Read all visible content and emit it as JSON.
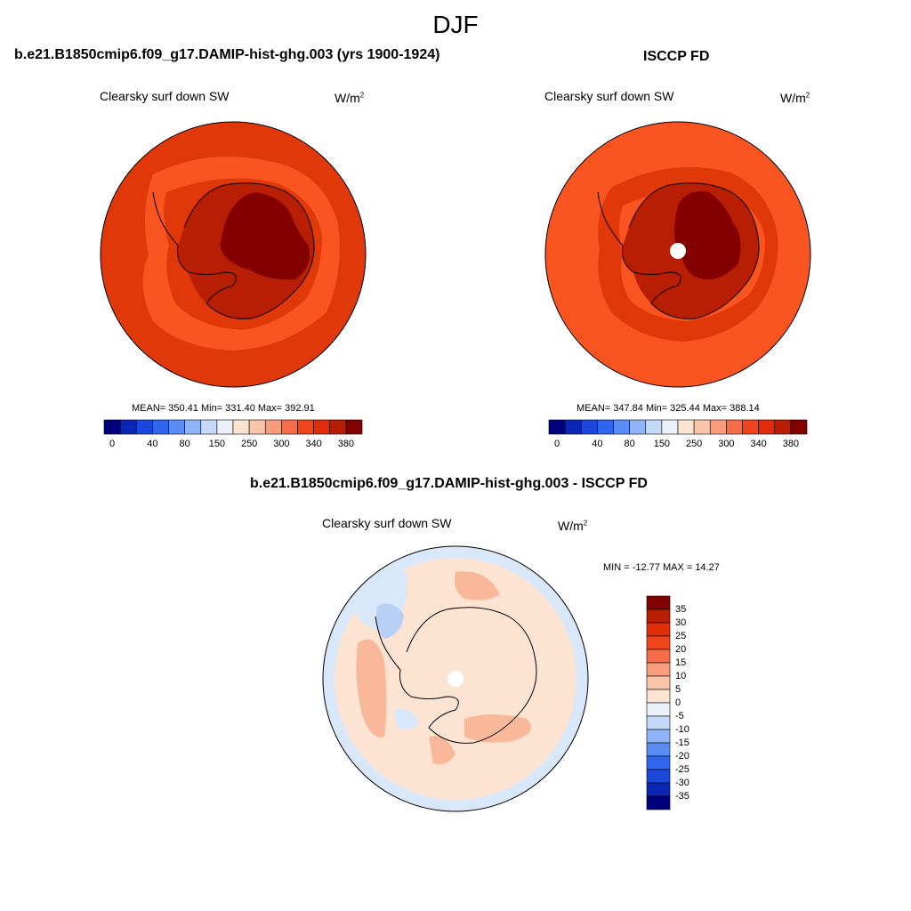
{
  "main_title": "DJF",
  "panels": [
    {
      "case_title": "b.e21.B1850cmip6.f09_g17.DAMIP-hist-ghg.003 (yrs 1900-1924)",
      "variable": "Clearsky surf down SW",
      "units": "W/m",
      "units_sup": "2",
      "stats": "MEAN= 350.41  Min= 331.40  Max= 392.91",
      "colorbar_ticks": [
        "0",
        "40",
        "80",
        "150",
        "250",
        "300",
        "340",
        "380"
      ]
    },
    {
      "case_title": "ISCCP FD",
      "variable": "Clearsky surf down SW",
      "units": "W/m",
      "units_sup": "2",
      "stats": "MEAN= 347.84  Min= 325.44  Max= 388.14",
      "colorbar_ticks": [
        "0",
        "40",
        "80",
        "150",
        "250",
        "300",
        "340",
        "380"
      ]
    }
  ],
  "diff_panel": {
    "title": "b.e21.B1850cmip6.f09_g17.DAMIP-hist-ghg.003 - ISCCP FD",
    "variable": "Clearsky surf down SW",
    "units": "W/m",
    "units_sup": "2",
    "stats": "MIN = -12.77 MAX =  14.27",
    "colorbar_ticks": [
      "35",
      "30",
      "25",
      "20",
      "15",
      "10",
      "5",
      "0",
      "-5",
      "-10",
      "-15",
      "-20",
      "-25",
      "-30",
      "-35"
    ]
  },
  "colors": {
    "abs_colorbar": [
      "#00007f",
      "#0a26b4",
      "#1b47dc",
      "#2f66f0",
      "#5a8cf6",
      "#90b4f8",
      "#c4d8fa",
      "#ebf0fa",
      "#fde3d2",
      "#fcc5a9",
      "#f99c7c",
      "#f66c48",
      "#f0441d",
      "#e02c08",
      "#b81e03",
      "#820000"
    ],
    "diff_colorbar": [
      "#820000",
      "#b81e03",
      "#e02c08",
      "#f0441d",
      "#f66c48",
      "#f99c7c",
      "#fcc5a9",
      "#fde3d2",
      "#ebf0fa",
      "#c4d8fa",
      "#90b4f8",
      "#5a8cf6",
      "#2f66f0",
      "#1b47dc",
      "#0a26b4",
      "#00007f"
    ],
    "ocean_model": "#e03808",
    "ocean_obs": "#fa5520",
    "band_light": "#fa5520",
    "interior_mid": "#b81e03",
    "interior_dark": "#820000",
    "diff_base": "#fde3d2",
    "diff_light_blue": "#d8e8fa",
    "diff_pos": "#f9b89a",
    "diff_neg": "#b8d0f6"
  }
}
